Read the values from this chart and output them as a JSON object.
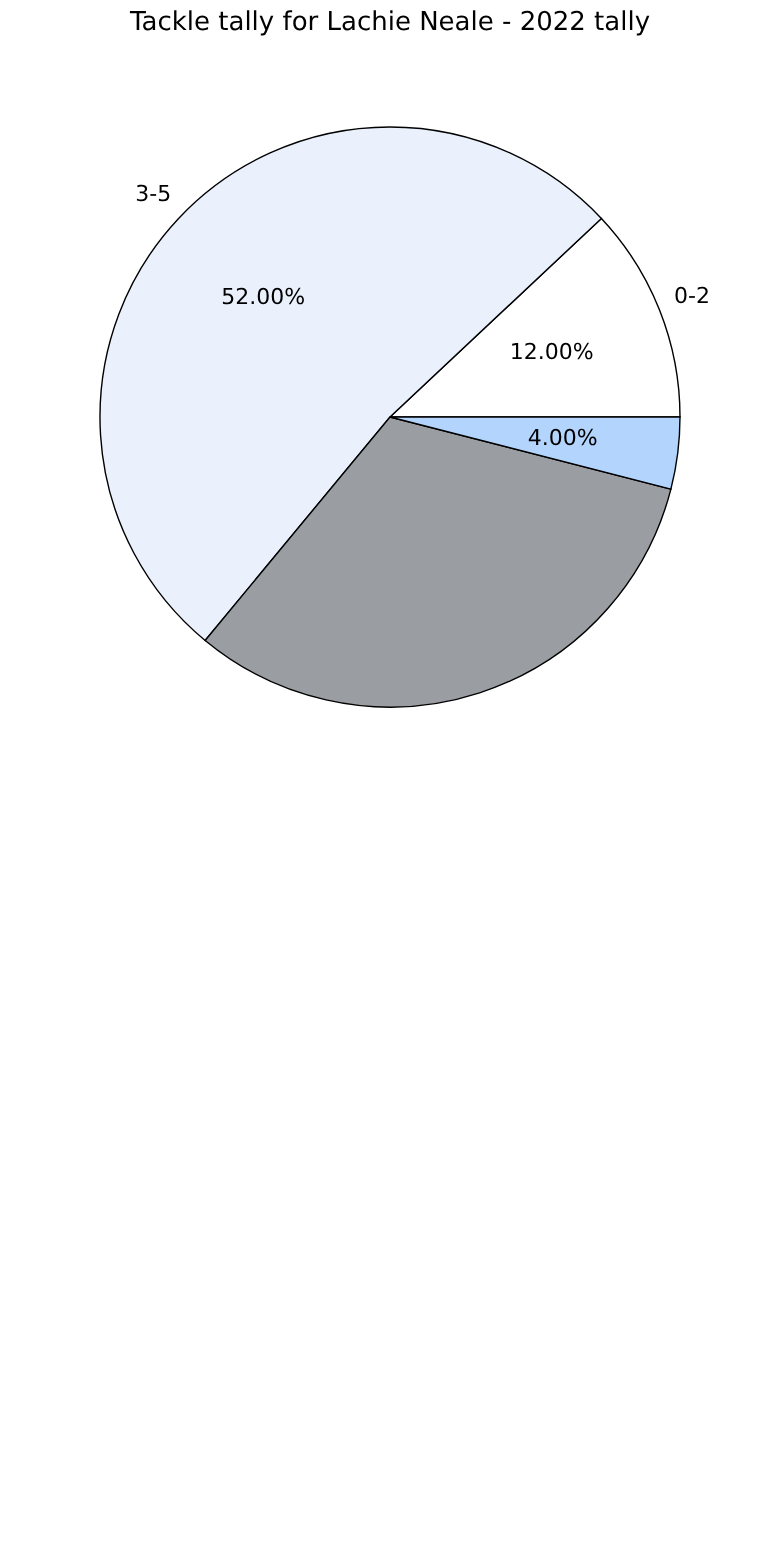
{
  "chart_data": {
    "type": "pie",
    "title": "Tackle tally for Lachie Neale - 2022 tally",
    "categories": [
      "0-2",
      "3-5",
      null,
      null
    ],
    "values": [
      12,
      52,
      32,
      4
    ],
    "colors": [
      "#ffffff",
      "#eaf1fd",
      "#9a9da1",
      "#b3d4fc"
    ],
    "value_labels": [
      "12.00%",
      "52.00%",
      null,
      "4.00%"
    ],
    "legend": false
  }
}
